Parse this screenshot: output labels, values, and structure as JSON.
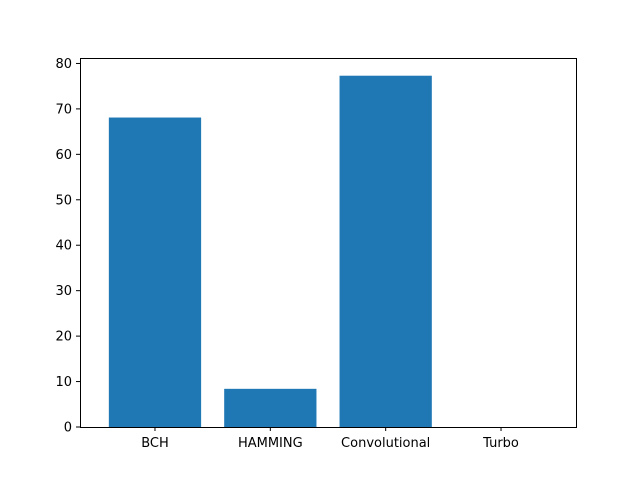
{
  "chart_data": {
    "type": "bar",
    "categories": [
      "BCH",
      "HAMMING",
      "Convolutional",
      "Turbo"
    ],
    "values": [
      68.1,
      8.4,
      77.3,
      0
    ],
    "yticks": [
      "0",
      "10",
      "20",
      "30",
      "40",
      "50",
      "60",
      "70",
      "80"
    ],
    "ylim": [
      0,
      81.2
    ],
    "bar_color": "#1f77b4",
    "title": "",
    "xlabel": "",
    "ylabel": "",
    "grid": false,
    "legend": "none"
  }
}
